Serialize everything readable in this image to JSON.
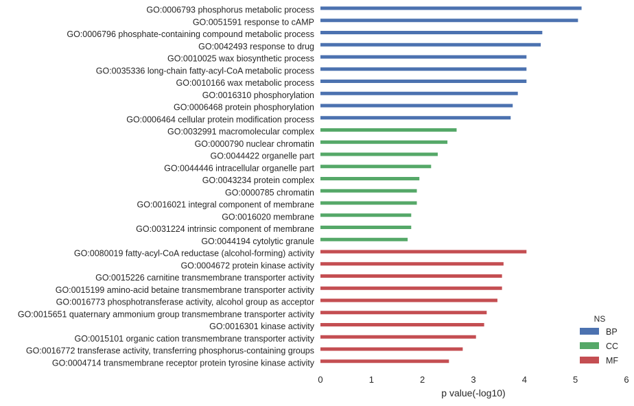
{
  "chart_data": {
    "type": "bar",
    "orientation": "horizontal",
    "xlabel": "p value(-log10)",
    "xlim": [
      0,
      6
    ],
    "xticks": [
      0,
      1,
      2,
      3,
      4,
      5,
      6
    ],
    "grid": false,
    "legend": {
      "title": "NS",
      "placement": "bottom-right",
      "entries": [
        {
          "name": "BP",
          "color": "#4c72b0"
        },
        {
          "name": "CC",
          "color": "#55a868"
        },
        {
          "name": "MF",
          "color": "#c44e52"
        }
      ]
    },
    "categories": [
      "GO:0006793 phosphorus metabolic process",
      "GO:0051591 response to cAMP",
      "GO:0006796 phosphate-containing compound metabolic process",
      "GO:0042493 response to drug",
      "GO:0010025 wax biosynthetic process",
      "GO:0035336 long-chain fatty-acyl-CoA metabolic process",
      "GO:0010166 wax metabolic process",
      "GO:0016310 phosphorylation",
      "GO:0006468 protein phosphorylation",
      "GO:0006464 cellular protein modification process",
      "GO:0032991 macromolecular complex",
      "GO:0000790 nuclear chromatin",
      "GO:0044422 organelle part",
      "GO:0044446 intracellular organelle part",
      "GO:0043234 protein complex",
      "GO:0000785 chromatin",
      "GO:0016021 integral component of membrane",
      "GO:0016020 membrane",
      "GO:0031224 intrinsic component of membrane",
      "GO:0044194 cytolytic granule",
      "GO:0080019 fatty-acyl-CoA reductase (alcohol-forming) activity",
      "GO:0004672 protein kinase activity",
      "GO:0015226 carnitine transmembrane transporter activity",
      "GO:0015199 amino-acid betaine transmembrane transporter activity",
      "GO:0016773 phosphotransferase activity, alcohol group as acceptor",
      "GO:0015651 quaternary ammonium group transmembrane transporter activity",
      "GO:0016301 kinase activity",
      "GO:0015101 organic cation transmembrane transporter activity",
      "GO:0016772 transferase activity, transferring phosphorus-containing groups",
      "GO:0004714 transmembrane receptor protein tyrosine kinase activity"
    ],
    "groups": [
      "BP",
      "BP",
      "BP",
      "BP",
      "BP",
      "BP",
      "BP",
      "BP",
      "BP",
      "BP",
      "CC",
      "CC",
      "CC",
      "CC",
      "CC",
      "CC",
      "CC",
      "CC",
      "CC",
      "CC",
      "MF",
      "MF",
      "MF",
      "MF",
      "MF",
      "MF",
      "MF",
      "MF",
      "MF",
      "MF"
    ],
    "values": [
      5.12,
      5.05,
      4.35,
      4.32,
      4.04,
      4.04,
      4.04,
      3.87,
      3.77,
      3.73,
      2.67,
      2.49,
      2.3,
      2.17,
      1.94,
      1.89,
      1.89,
      1.78,
      1.78,
      1.71,
      4.04,
      3.59,
      3.56,
      3.56,
      3.47,
      3.26,
      3.21,
      3.05,
      2.79,
      2.52
    ]
  }
}
